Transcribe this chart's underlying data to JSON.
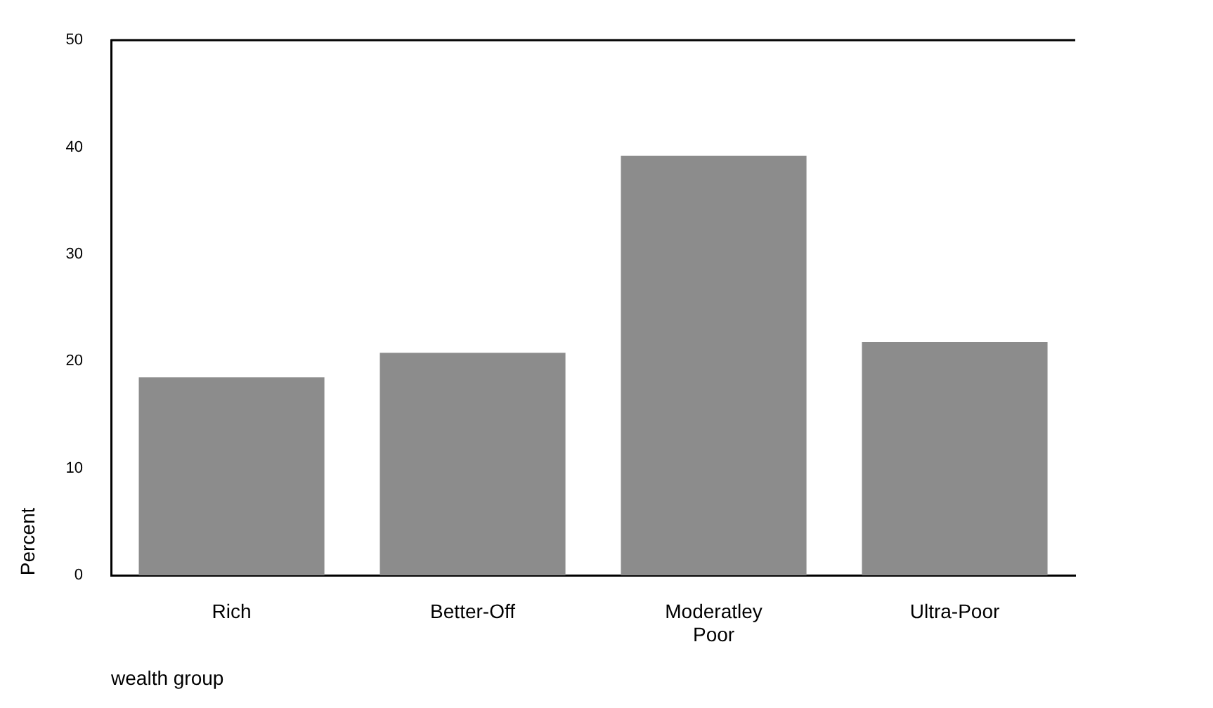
{
  "chart_data": {
    "type": "bar",
    "xlabel": "wealth group",
    "ylabel": "Percent",
    "categories": [
      "Rich",
      "Better-Off",
      "Moderatley Poor",
      "Ultra-Poor"
    ],
    "values": [
      18.5,
      20.8,
      39.2,
      21.8
    ],
    "color": "#8c8c8c",
    "ylim": [
      0,
      50
    ],
    "yticks": [
      0,
      10,
      20,
      30,
      40,
      50
    ],
    "grid": false,
    "legend": false
  }
}
